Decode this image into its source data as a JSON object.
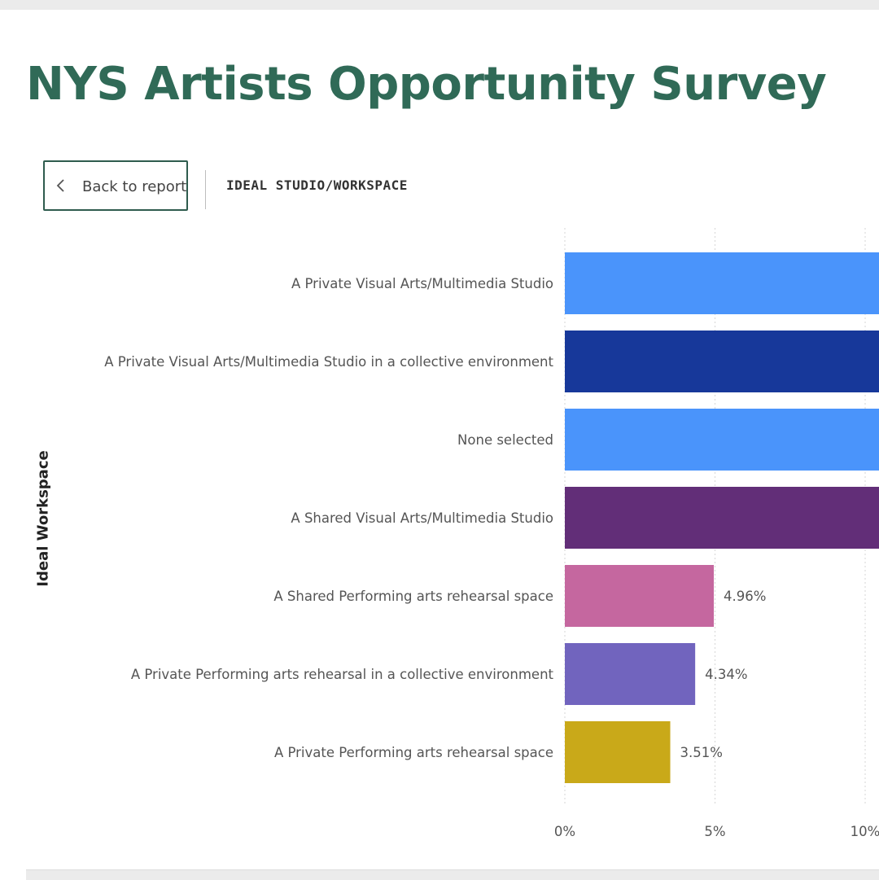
{
  "report": {
    "title": "NYS Artists Opportunity Survey",
    "back_label": "Back to report",
    "section_title": "IDEAL STUDIO/WORKSPACE"
  },
  "icons": {
    "back": "chevron-left-icon"
  },
  "colors": {
    "title": "#306a57",
    "back_border": "#2f5c4e"
  },
  "chart_data": {
    "type": "bar",
    "orientation": "horizontal",
    "ylabel": "Ideal Workspace",
    "xlabel": "",
    "categories": [
      "A Private Visual Arts/Multimedia Studio",
      "A Private Visual Arts/Multimedia Studio in a collective environment",
      "None selected",
      "A Shared Visual Arts/Multimedia Studio",
      "A Shared Performing arts rehearsal space",
      "A Private Performing arts rehearsal in a collective environment",
      "A Private Performing arts rehearsal space"
    ],
    "values": [
      null,
      null,
      null,
      null,
      4.96,
      4.34,
      3.51
    ],
    "data_labels": [
      "",
      "",
      "",
      "",
      "4.96%",
      "4.34%",
      "3.51%"
    ],
    "colors": [
      "#4a94fb",
      "#17389a",
      "#4a94fb",
      "#622e78",
      "#c5679f",
      "#7164be",
      "#c9a919"
    ],
    "x_ticks": [
      0,
      5,
      10
    ],
    "x_tick_labels": [
      "0%",
      "5%",
      "10%"
    ],
    "xlim": [
      0,
      10
    ],
    "grid": true
  }
}
